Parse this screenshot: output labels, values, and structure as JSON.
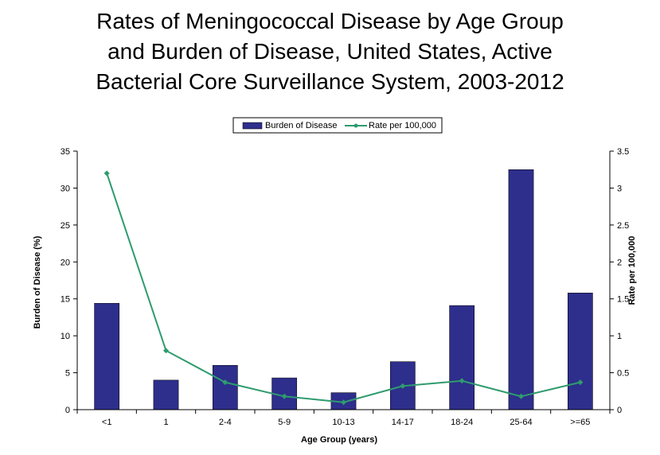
{
  "chart_data": {
    "type": "bar",
    "title_lines": [
      "Rates of Meningococcal Disease by Age Group",
      "and Burden of Disease, United States, Active",
      "Bacterial Core Surveillance System, 2003-2012"
    ],
    "xlabel": "Age Group (years)",
    "ylabel": "Burden of Disease (%)",
    "y2label": "Rate per 100,000",
    "categories": [
      "<1",
      "1",
      "2-4",
      "5-9",
      "10-13",
      "14-17",
      "18-24",
      "25-64",
      ">=65"
    ],
    "ylim": [
      0,
      35
    ],
    "y2lim": [
      0,
      3.5
    ],
    "yticks": [
      "0",
      "5",
      "10",
      "15",
      "20",
      "25",
      "30",
      "35"
    ],
    "y2ticks": [
      "0",
      "0.5",
      "1",
      "1.5",
      "2",
      "2.5",
      "3",
      "3.5"
    ],
    "legend_position": "top-center",
    "grid": false,
    "series": [
      {
        "name": "Burden of Disease",
        "type": "bar",
        "axis": "left",
        "color": "#2e2e8c",
        "values": [
          14.4,
          4.0,
          6.0,
          4.3,
          2.3,
          6.5,
          14.1,
          32.5,
          15.8
        ]
      },
      {
        "name": "Rate per 100,000",
        "type": "line",
        "axis": "right",
        "color": "#2e9b6e",
        "values": [
          3.2,
          0.8,
          0.37,
          0.18,
          0.1,
          0.32,
          0.39,
          0.18,
          0.37
        ]
      }
    ]
  }
}
